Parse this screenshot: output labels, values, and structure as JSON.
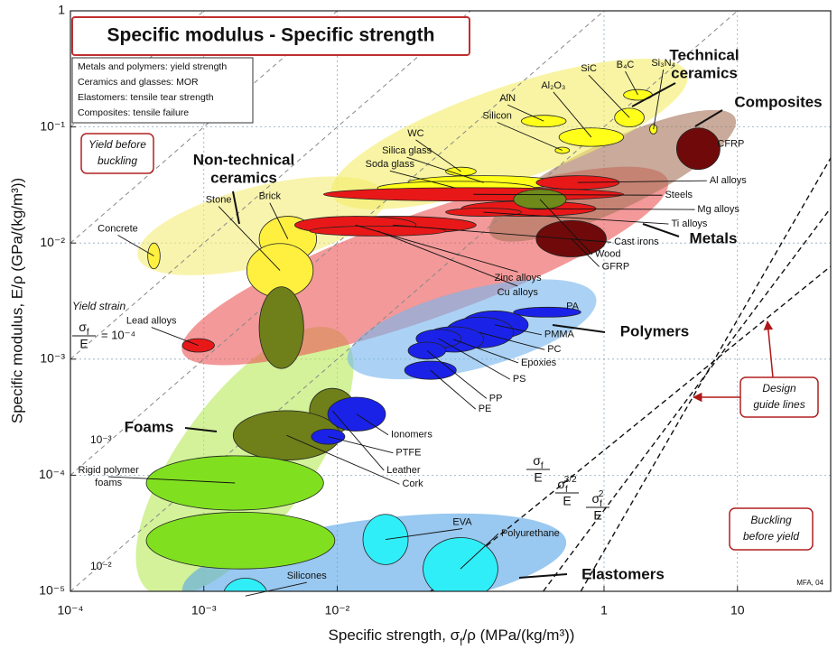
{
  "chart_data": {
    "type": "bubble",
    "title": "Specific modulus - Specific strength",
    "notes": [
      "Metals and polymers: yield strength",
      "Ceramics and glasses: MOR",
      "Elastomers: tensile tear strength",
      "Composites: tensile failure"
    ],
    "xlabel": {
      "pre": "Specific strength, σ",
      "sub": "f",
      "post": "/ρ (MPa/(kg/m³))"
    },
    "ylabel": "Specific modulus, E/ρ (GPa/(kg/m³))",
    "x_scale": "log",
    "y_scale": "log",
    "grid": true,
    "xlim": [
      0.0001,
      50
    ],
    "ylim": [
      1e-05,
      1
    ],
    "xticks": [
      {
        "value": 0.0001,
        "label": "10⁻⁴"
      },
      {
        "value": 0.001,
        "label": "10⁻³"
      },
      {
        "value": 0.01,
        "label": "10⁻²"
      },
      1,
      10
    ],
    "yticks": [
      {
        "value": 1e-05,
        "label": "10⁻⁵"
      },
      {
        "value": 0.0001,
        "label": "10⁻⁴"
      },
      {
        "value": 0.001,
        "label": "10⁻³"
      },
      {
        "value": 0.01,
        "label": "10⁻²"
      },
      {
        "value": 0.1,
        "label": "10⁻¹"
      },
      1
    ],
    "families": [
      {
        "name": [
          "Foams"
        ],
        "color": "#b8ea5c",
        "x": [
          0.00039,
          0.0105
        ],
        "y": [
          1e-05,
          0.0017
        ]
      },
      {
        "name": [
          "Elastomers"
        ],
        "color": "#5aa6e6",
        "x": [
          0.00069,
          0.52
        ],
        "y": [
          1e-05,
          2.7e-05
        ]
      },
      {
        "name": [
          "Non-technical",
          "ceramics"
        ],
        "color": "#f6ee7a",
        "x": [
          0.00032,
          0.023
        ],
        "y": [
          0.0076,
          0.026
        ]
      },
      {
        "name": [
          "Metals"
        ],
        "color": "#ec5a5a",
        "x": [
          0.00069,
          3
        ],
        "y": [
          0.00115,
          0.035
        ]
      },
      {
        "name": [
          "Polymers"
        ],
        "color": "#78b6ee",
        "x": [
          0.012,
          0.87
        ],
        "y": [
          0.00096,
          0.0034
        ]
      },
      {
        "name": [
          "Composites"
        ],
        "color": "#a8765e",
        "x": [
          0.14,
          9.6
        ],
        "y": [
          0.012,
          0.12
        ]
      },
      {
        "name": [
          "Technical",
          "ceramics"
        ],
        "color": "#f4ee6a",
        "x": [
          0.0091,
          4.2
        ],
        "y": [
          0.026,
          0.29
        ]
      }
    ],
    "materials": [
      {
        "name": "Concrete",
        "color": "#fff040",
        "x": [
          0.00038,
          0.00047
        ],
        "y": [
          0.006,
          0.01
        ]
      },
      {
        "name": "Brick",
        "color": "#fff040",
        "x": [
          0.0026,
          0.007
        ],
        "y": [
          0.0069,
          0.017
        ]
      },
      {
        "name": "Stone",
        "color": "#fff040",
        "x": [
          0.0021,
          0.0066
        ],
        "y": [
          0.0034,
          0.0099
        ]
      },
      {
        "name": "Lead alloys",
        "color": "#e81818",
        "x": [
          0.00069,
          0.0012
        ],
        "y": [
          0.00115,
          0.0015
        ]
      },
      {
        "color": "#6f7f1a",
        "x": [
          0.0026,
          0.0056
        ],
        "y": [
          0.00083,
          0.0042
        ]
      },
      {
        "name": "B₄C",
        "color": "#ffff1a",
        "x": [
          1.4,
          2.3
        ],
        "y": [
          0.17,
          0.21
        ]
      },
      {
        "name": "Si₃N₄",
        "color": "#ffff1a",
        "x": [
          2.2,
          2.5
        ],
        "y": [
          0.087,
          0.105
        ]
      },
      {
        "name": "SiC",
        "color": "#ffff1a",
        "x": [
          1.2,
          2.0
        ],
        "y": [
          0.1,
          0.145
        ]
      },
      {
        "name": "Al₂O₃",
        "color": "#ffff1a",
        "x": [
          0.46,
          1.4
        ],
        "y": [
          0.068,
          0.098
        ]
      },
      {
        "name": "AlN",
        "color": "#ffff1a",
        "x": [
          0.24,
          0.52
        ],
        "y": [
          0.1,
          0.126
        ]
      },
      {
        "name": "Silicon",
        "color": "#ffff1a",
        "x": [
          0.43,
          0.55
        ],
        "y": [
          0.059,
          0.067
        ]
      },
      {
        "name": "WC",
        "color": "#ffff1a",
        "x": [
          0.065,
          0.11
        ],
        "y": [
          0.038,
          0.045
        ]
      },
      {
        "name": "Silica glass",
        "color": "#ffff1a",
        "x": [
          0.034,
          0.46
        ],
        "y": [
          0.029,
          0.038
        ]
      },
      {
        "name": "Soda glass",
        "color": "#ffff1a",
        "x": [
          0.02,
          0.3
        ],
        "y": [
          0.026,
          0.034
        ]
      },
      {
        "name": "CFRP",
        "color": "#700a0a",
        "x": [
          3.5,
          7.4
        ],
        "y": [
          0.043,
          0.098
        ]
      },
      {
        "name": "Al alloys",
        "color": "#e81818",
        "x": [
          0.31,
          1.3
        ],
        "y": [
          0.029,
          0.038
        ]
      },
      {
        "name": "Steels",
        "color": "#e81818",
        "x": [
          0.0079,
          1.4
        ],
        "y": [
          0.023,
          0.03
        ]
      },
      {
        "name": "Mg alloys",
        "color": "#e81818",
        "x": [
          0.085,
          0.87
        ],
        "y": [
          0.017,
          0.023
        ]
      },
      {
        "name": "Ti alloys",
        "color": "#e81818",
        "x": [
          0.065,
          0.24
        ],
        "y": [
          0.017,
          0.02
        ]
      },
      {
        "name": "Cast irons",
        "color": "#e81818",
        "x": [
          0.0062,
          0.11
        ],
        "y": [
          0.012,
          0.017
        ]
      },
      {
        "name": "Zinc alloys",
        "color": "#e81818",
        "x": [
          0.0048,
          0.039
        ],
        "y": [
          0.012,
          0.017
        ]
      },
      {
        "name": "Cu alloys",
        "color": "#e81818",
        "x": [
          0.0062,
          0.065
        ],
        "y": [
          0.0115,
          0.014
        ]
      },
      {
        "name": "Wood",
        "color": "#6f8a1a",
        "x": [
          0.21,
          0.52
        ],
        "y": [
          0.0195,
          0.029
        ]
      },
      {
        "name": "GFRP",
        "color": "#700a0a",
        "x": [
          0.31,
          1.04
        ],
        "y": [
          0.0076,
          0.0156
        ]
      },
      {
        "name": "Leather",
        "color": "#6f7f1a",
        "x": [
          0.0062,
          0.0137
        ],
        "y": [
          0.00023,
          0.00056
        ]
      },
      {
        "name": "Cork",
        "color": "#6f7f1a",
        "x": [
          0.00166,
          0.0105
        ],
        "y": [
          0.000135,
          0.00036
        ]
      },
      {
        "name": "PA",
        "color": "#1a22e8",
        "x": [
          0.21,
          0.67
        ],
        "y": [
          0.0023,
          0.0028
        ]
      },
      {
        "name": "PMMA",
        "color": "#1a22e8",
        "x": [
          0.085,
          0.27
        ],
        "y": [
          0.0015,
          0.0026
        ]
      },
      {
        "name": "PC",
        "color": "#1a22e8",
        "x": [
          0.065,
          0.21
        ],
        "y": [
          0.00125,
          0.0023
        ]
      },
      {
        "name": "Epoxies",
        "color": "#1a22e8",
        "x": [
          0.044,
          0.125
        ],
        "y": [
          0.00115,
          0.0019
        ]
      },
      {
        "name": "PS",
        "color": "#1a22e8",
        "x": [
          0.039,
          0.085
        ],
        "y": [
          0.00125,
          0.0018
        ]
      },
      {
        "name": "PP",
        "color": "#1a22e8",
        "x": [
          0.034,
          0.065
        ],
        "y": [
          0.001,
          0.0014
        ]
      },
      {
        "name": "PE",
        "color": "#1a22e8",
        "x": [
          0.032,
          0.078
        ],
        "y": [
          0.00067,
          0.00096
        ]
      },
      {
        "name": "Ionomers",
        "color": "#1a22e8",
        "x": [
          0.0085,
          0.023
        ],
        "y": [
          0.00024,
          0.00047
        ]
      },
      {
        "name": "PTFE",
        "color": "#1a22e8",
        "x": [
          0.0064,
          0.0114
        ],
        "y": [
          0.000185,
          0.00025
        ]
      },
      {
        "name": [
          "Rigid polymer",
          "foams"
        ],
        "color": "#80e020",
        "x": [
          0.00037,
          0.0079
        ],
        "y": [
          5e-05,
          0.000147
        ]
      },
      {
        "color": "#80e020",
        "x": [
          0.00037,
          0.0096
        ],
        "y": [
          1.56e-05,
          4.8e-05
        ]
      },
      {
        "name": "Silicones",
        "color": "#30eef8",
        "x": [
          0.0014,
          0.003
        ],
        "y": [
          6.4e-06,
          1.3e-05
        ]
      },
      {
        "name": "EVA",
        "color": "#30eef8",
        "x": [
          0.0156,
          0.034
        ],
        "y": [
          1.7e-05,
          4.6e-05
        ]
      },
      {
        "name": "Polyurethane",
        "color": "#30eef8",
        "x": [
          0.044,
          0.16
        ],
        "y": [
          8.4e-06,
          2.9e-05
        ]
      }
    ],
    "yield_strain_title": "Yield strain",
    "yield_strain_fraction": {
      "num": "σ",
      "sub": "f",
      "den": "E"
    },
    "strain_lines": [
      {
        "value": 0.0001,
        "label": "= 10⁻⁴"
      },
      {
        "value": 0.001,
        "label": "10⁻³"
      },
      {
        "value": 0.01,
        "label": "10⁻²"
      },
      1e-05,
      1e-06
    ],
    "design_lines": [
      {
        "x": [
          0.05,
          50
        ],
        "y": [
          1e-05,
          0.0063
        ],
        "label": {
          "num": "σ",
          "sub": "f",
          "den": "E"
        }
      },
      {
        "x": [
          0.35,
          50
        ],
        "y": [
          1e-05,
          0.02
        ],
        "label": {
          "num": "σ",
          "sub": "f",
          "sup": "3/2",
          "den": "E"
        }
      },
      {
        "x": [
          0.67,
          50
        ],
        "y": [
          1e-05,
          0.054
        ],
        "label": {
          "num": "σ",
          "sub": "f",
          "sup": "2",
          "den": "E"
        }
      }
    ],
    "annotations": {
      "yield_before_buckling": [
        "Yield before",
        "buckling"
      ],
      "buckling_before_yield": [
        "Buckling",
        "before yield"
      ],
      "design_guide_lines": [
        "Design",
        "guide lines"
      ],
      "credit": "MFA, 04"
    }
  }
}
